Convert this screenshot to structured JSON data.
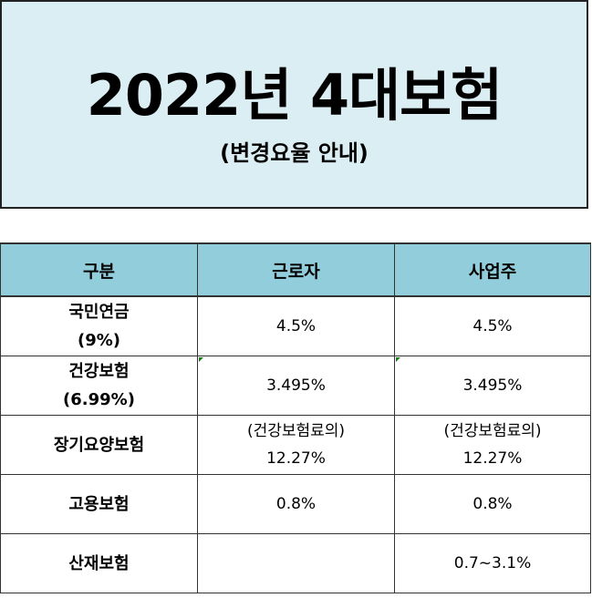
{
  "header": {
    "title": "2022년 4대보험",
    "subtitle": "(변경요율 안내)"
  },
  "table": {
    "columns": [
      "구분",
      "근로자",
      "사업주"
    ],
    "rows": [
      {
        "name": "국민연금",
        "name_sub": "(9%)",
        "worker": "4.5%",
        "worker_sub": "",
        "employer": "4.5%",
        "employer_sub": ""
      },
      {
        "name": "건강보험",
        "name_sub": "(6.99%)",
        "worker": "3.495%",
        "worker_sub": "",
        "employer": "3.495%",
        "employer_sub": ""
      },
      {
        "name": "장기요양보험",
        "name_sub": "",
        "worker": "(건강보험료의)",
        "worker_sub": "12.27%",
        "employer": "(건강보험료의)",
        "employer_sub": "12.27%"
      },
      {
        "name": "고용보험",
        "name_sub": "",
        "worker": "0.8%",
        "worker_sub": "",
        "employer": "0.8%",
        "employer_sub": ""
      },
      {
        "name": "산재보험",
        "name_sub": "",
        "worker": "",
        "worker_sub": "",
        "employer": "0.7~3.1%",
        "employer_sub": ""
      }
    ]
  },
  "colors": {
    "header_bg": "#dbeef3",
    "table_header_bg": "#92cddc",
    "cell_marker": "#1f7a1f"
  }
}
